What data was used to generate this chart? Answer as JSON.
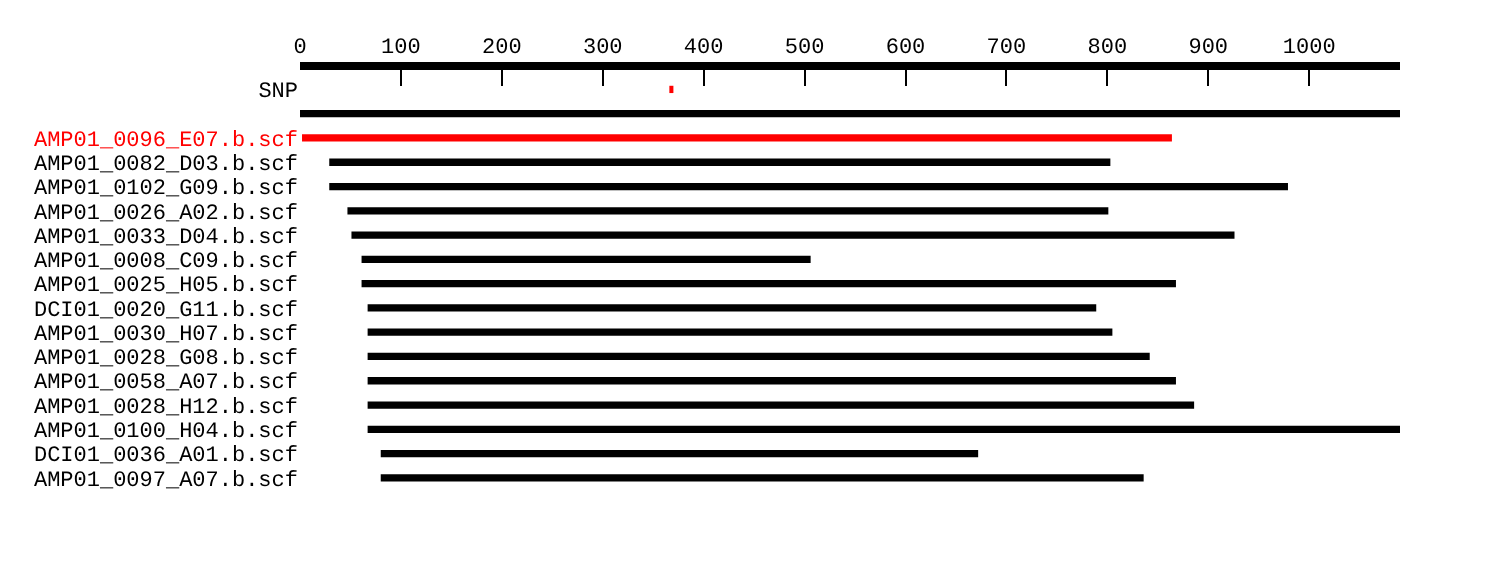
{
  "chart_data": {
    "type": "bar",
    "orientation": "horizontal",
    "categories": [
      "SNP",
      null,
      "AMP01_0096_E07.b.scf",
      "AMP01_0082_D03.b.scf",
      "AMP01_0102_G09.b.scf",
      "AMP01_0026_A02.b.scf",
      "AMP01_0033_D04.b.scf",
      "AMP01_0008_C09.b.scf",
      "AMP01_0025_H05.b.scf",
      "DCI01_0020_G11.b.scf",
      "AMP01_0030_H07.b.scf",
      "AMP01_0028_G08.b.scf",
      "AMP01_0058_A07.b.scf",
      "AMP01_0028_H12.b.scf",
      "AMP01_0100_H04.b.scf",
      "DCI01_0036_A01.b.scf",
      "AMP01_0097_A07.b.scf"
    ],
    "series": [
      {
        "color": "#ff0000",
        "base": [
          366,
          null,
          null,
          null,
          null,
          null,
          null,
          null,
          null,
          null,
          null,
          null,
          null,
          null,
          null,
          null,
          null
        ],
        "values": [
          4,
          null,
          null,
          null,
          null,
          null,
          null,
          null,
          null,
          null,
          null,
          null,
          null,
          null,
          null,
          null,
          null
        ]
      },
      {
        "colors": [
          "#000000",
          "#000000",
          "#ff0000",
          "#000000",
          "#000000",
          "#000000",
          "#000000",
          "#000000",
          "#000000",
          "#000000",
          "#000000",
          "#000000",
          "#000000",
          "#000000",
          "#000000",
          "#000000",
          "#000000"
        ],
        "base": [
          null,
          0,
          2,
          29,
          29,
          47,
          51,
          61,
          61,
          67,
          67,
          67,
          67,
          67,
          67,
          80,
          80
        ],
        "values": [
          null,
          1090,
          862,
          774,
          950,
          754,
          875,
          445,
          807,
          722,
          738,
          775,
          801,
          819,
          1023,
          592,
          756
        ]
      }
    ],
    "xlim": [
      0,
      1090
    ],
    "xticks": [
      0,
      100,
      200,
      300,
      400,
      500,
      600,
      700,
      800,
      900,
      1000
    ]
  }
}
